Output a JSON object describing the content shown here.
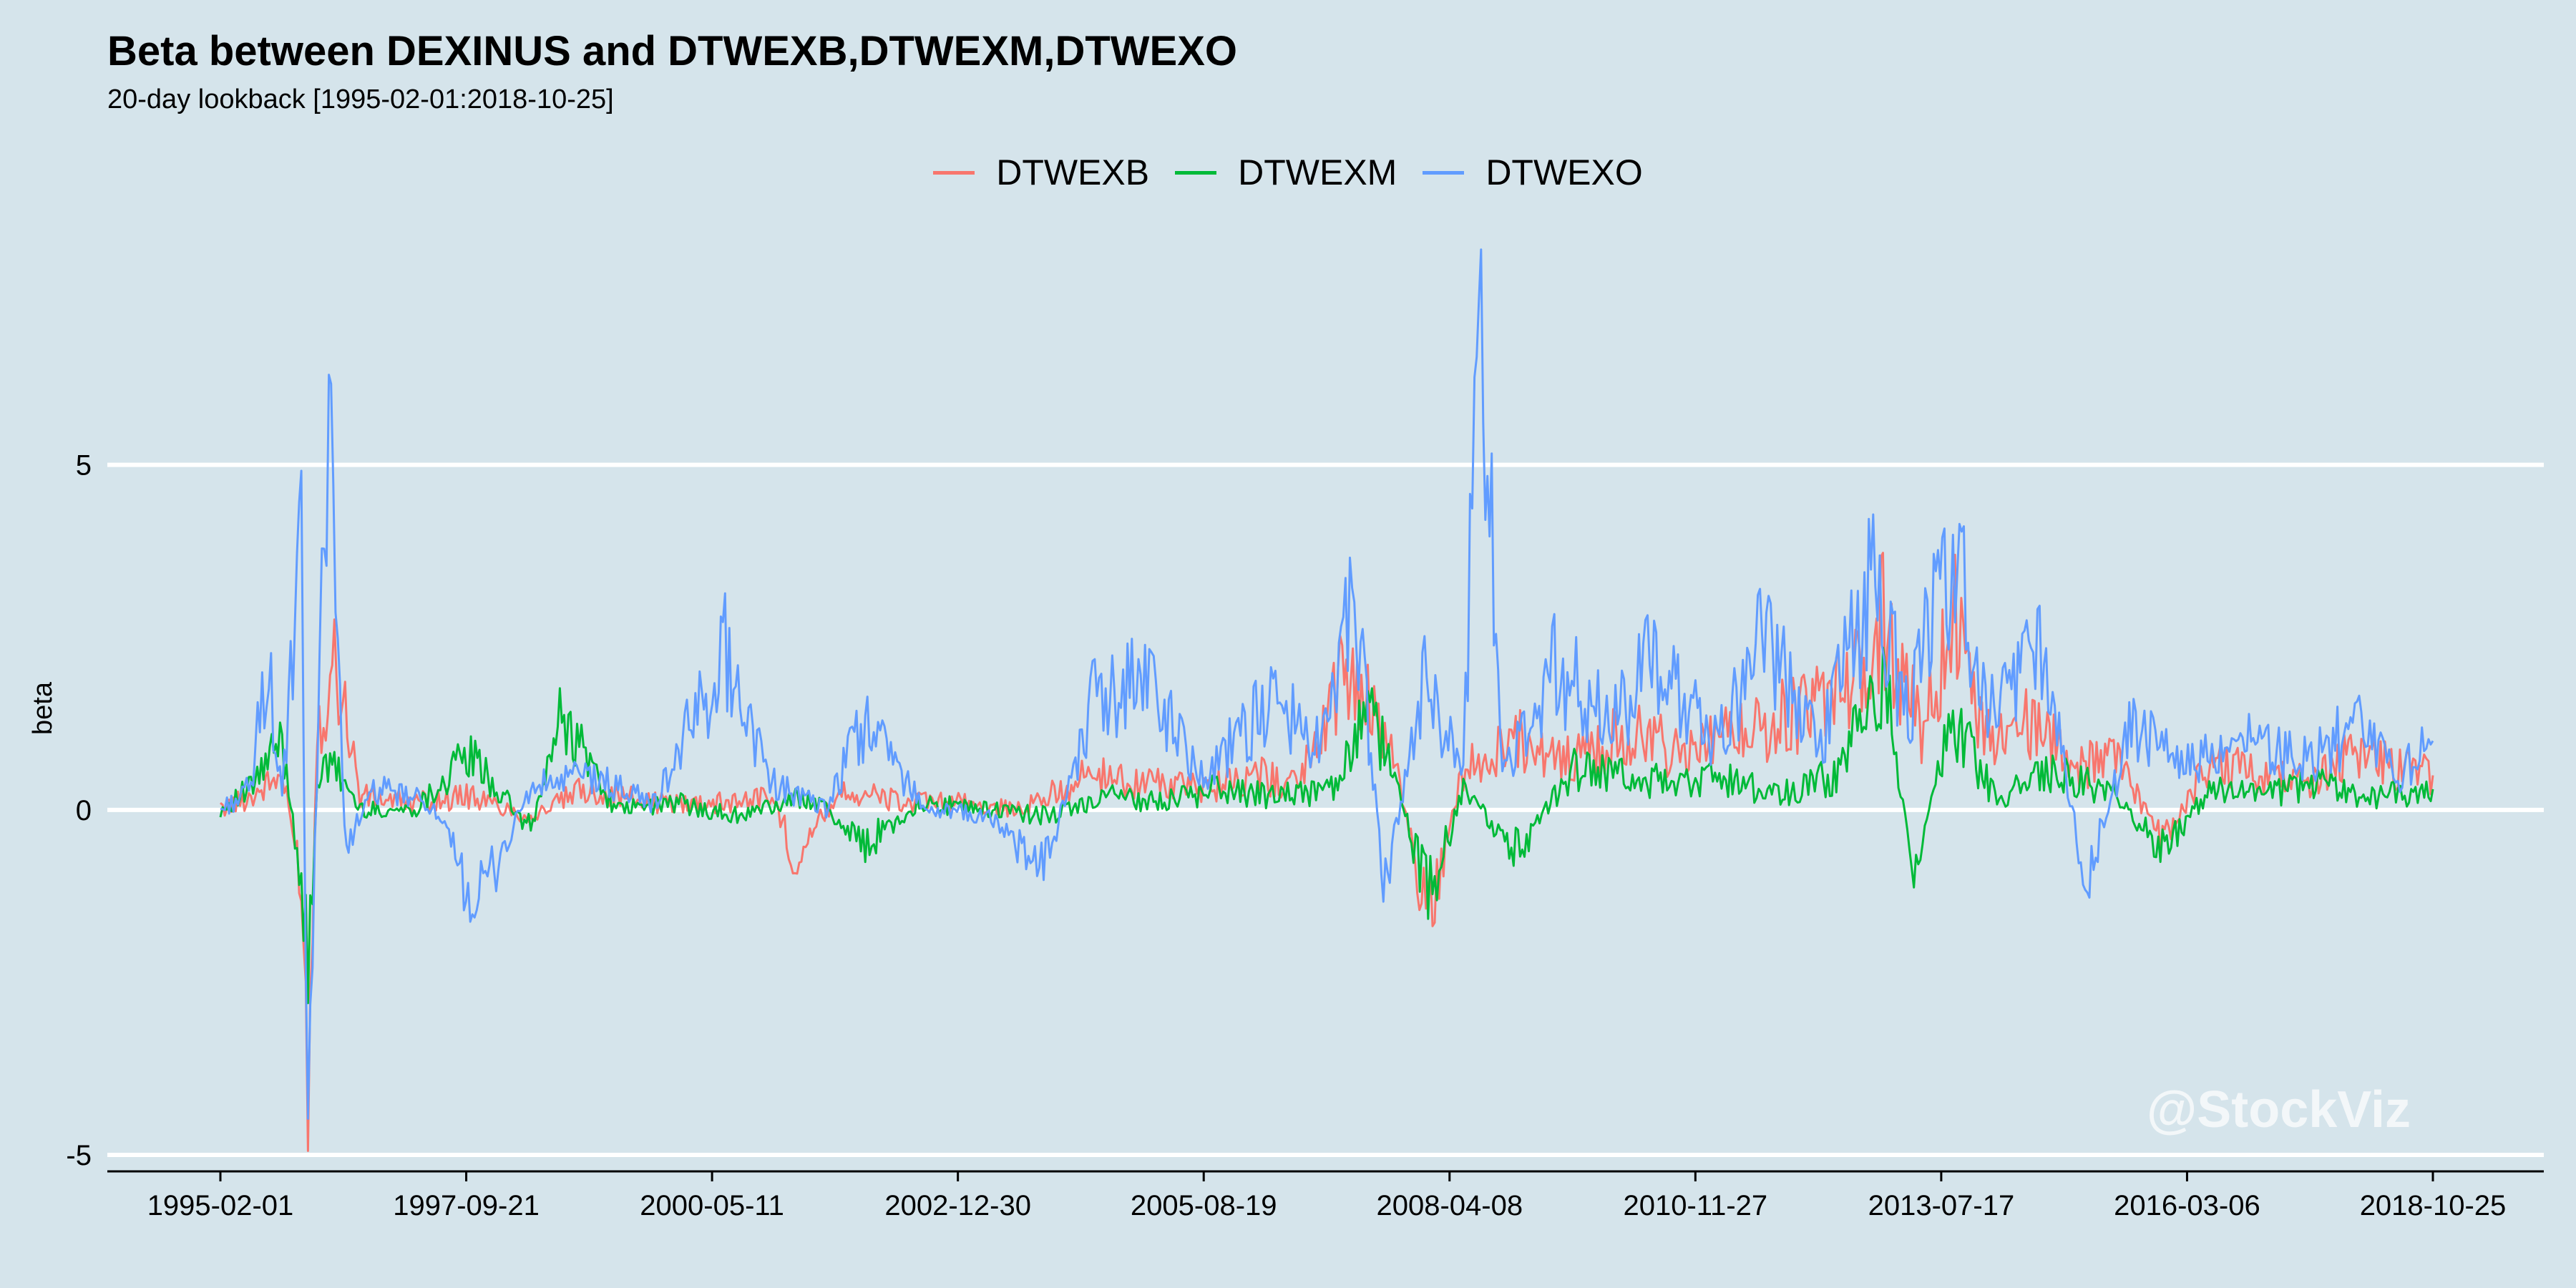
{
  "chart_data": {
    "type": "line",
    "title": "Beta between DEXINUS and DTWEXB,DTWEXM,DTWEXO",
    "subtitle": "20-day lookback [1995-02-01:2018-10-25]",
    "ylabel": "beta",
    "xlabel": "",
    "ylim": [
      -5,
      7.9
    ],
    "yticks": [
      -5,
      0,
      5
    ],
    "xlim": [
      "1995-02-01",
      "2018-10-25"
    ],
    "x_tick_labels": [
      "1995-02-01",
      "1997-09-21",
      "2000-05-11",
      "2002-12-30",
      "2005-08-19",
      "2008-04-08",
      "2010-11-27",
      "2013-07-17",
      "2016-03-06",
      "2018-10-25"
    ],
    "grid": "horizontal major lines only",
    "legend_position": "top",
    "watermark": "@StockViz",
    "series": [
      {
        "name": "DTWEXB",
        "color": "#f8766d",
        "points": [
          [
            "1995-02-01",
            0.0
          ],
          [
            "1995-06-01",
            0.2
          ],
          [
            "1995-10-01",
            0.5
          ],
          [
            "1995-12-15",
            -1.0
          ],
          [
            "1996-01-10",
            -4.0
          ],
          [
            "1996-02-15",
            1.2
          ],
          [
            "1996-05-01",
            2.2
          ],
          [
            "1996-08-01",
            0.2
          ],
          [
            "1997-03-01",
            0.1
          ],
          [
            "1997-10-01",
            0.2
          ],
          [
            "1998-06-01",
            -0.1
          ],
          [
            "1999-01-01",
            0.3
          ],
          [
            "1999-10-01",
            0.1
          ],
          [
            "2000-06-01",
            0.1
          ],
          [
            "2001-01-01",
            0.2
          ],
          [
            "2001-04-01",
            -0.7
          ],
          [
            "2001-10-01",
            0.3
          ],
          [
            "2002-06-01",
            0.1
          ],
          [
            "2003-01-01",
            0.1
          ],
          [
            "2003-09-01",
            0.0
          ],
          [
            "2004-06-01",
            0.5
          ],
          [
            "2005-01-01",
            0.4
          ],
          [
            "2005-08-01",
            0.3
          ],
          [
            "2006-03-01",
            0.5
          ],
          [
            "2006-09-01",
            0.4
          ],
          [
            "2007-03-01",
            2.1
          ],
          [
            "2007-09-01",
            0.8
          ],
          [
            "2008-01-15",
            -1.6
          ],
          [
            "2008-06-01",
            0.6
          ],
          [
            "2009-01-01",
            1.0
          ],
          [
            "2009-08-01",
            0.7
          ],
          [
            "2010-03-01",
            1.1
          ],
          [
            "2010-11-01",
            0.8
          ],
          [
            "2011-08-01",
            1.2
          ],
          [
            "2012-06-01",
            1.6
          ],
          [
            "2012-12-01",
            2.8
          ],
          [
            "2013-05-01",
            1.2
          ],
          [
            "2013-09-01",
            2.8
          ],
          [
            "2014-01-01",
            1.0
          ],
          [
            "2014-07-01",
            1.3
          ],
          [
            "2015-01-01",
            0.6
          ],
          [
            "2015-06-01",
            0.8
          ],
          [
            "2015-12-01",
            -0.5
          ],
          [
            "2016-06-01",
            0.7
          ],
          [
            "2017-01-01",
            0.5
          ],
          [
            "2017-07-01",
            0.4
          ],
          [
            "2018-01-01",
            0.9
          ],
          [
            "2018-06-01",
            0.6
          ],
          [
            "2018-10-25",
            0.5
          ]
        ]
      },
      {
        "name": "DTWEXM",
        "color": "#00ba38",
        "points": [
          [
            "1995-02-01",
            0.0
          ],
          [
            "1995-06-01",
            0.3
          ],
          [
            "1995-10-01",
            1.0
          ],
          [
            "1995-12-15",
            -1.0
          ],
          [
            "1996-01-10",
            -2.6
          ],
          [
            "1996-02-15",
            0.5
          ],
          [
            "1996-05-01",
            0.6
          ],
          [
            "1996-08-01",
            0.0
          ],
          [
            "1997-03-01",
            0.0
          ],
          [
            "1997-10-01",
            0.8
          ],
          [
            "1998-06-01",
            -0.3
          ],
          [
            "1998-10-01",
            1.4
          ],
          [
            "1999-05-01",
            0.0
          ],
          [
            "2000-01-01",
            0.1
          ],
          [
            "2000-08-01",
            -0.1
          ],
          [
            "2001-06-01",
            0.2
          ],
          [
            "2002-01-01",
            -0.5
          ],
          [
            "2002-08-01",
            0.1
          ],
          [
            "2003-06-01",
            0.0
          ],
          [
            "2004-01-01",
            -0.1
          ],
          [
            "2004-08-01",
            0.2
          ],
          [
            "2005-03-01",
            0.1
          ],
          [
            "2005-10-01",
            0.3
          ],
          [
            "2006-06-01",
            0.2
          ],
          [
            "2007-01-01",
            0.3
          ],
          [
            "2007-06-01",
            1.4
          ],
          [
            "2007-10-01",
            0.2
          ],
          [
            "2008-01-15",
            -1.3
          ],
          [
            "2008-06-01",
            0.3
          ],
          [
            "2009-01-01",
            -0.6
          ],
          [
            "2009-08-01",
            0.6
          ],
          [
            "2010-06-01",
            0.4
          ],
          [
            "2011-03-01",
            0.5
          ],
          [
            "2011-10-01",
            0.2
          ],
          [
            "2012-06-01",
            0.5
          ],
          [
            "2012-12-01",
            2.0
          ],
          [
            "2013-04-01",
            -0.8
          ],
          [
            "2013-09-01",
            1.3
          ],
          [
            "2014-03-01",
            0.1
          ],
          [
            "2014-09-01",
            0.6
          ],
          [
            "2015-06-01",
            0.2
          ],
          [
            "2015-12-01",
            -0.6
          ],
          [
            "2016-06-01",
            0.3
          ],
          [
            "2017-01-01",
            0.2
          ],
          [
            "2017-08-01",
            0.4
          ],
          [
            "2018-03-01",
            0.2
          ],
          [
            "2018-10-25",
            0.3
          ]
        ]
      },
      {
        "name": "DTWEXO",
        "color": "#619cff",
        "points": [
          [
            "1995-02-01",
            0.0
          ],
          [
            "1995-06-01",
            0.3
          ],
          [
            "1995-08-01",
            2.2
          ],
          [
            "1995-10-01",
            0.2
          ],
          [
            "1995-12-15",
            3.7
          ],
          [
            "1996-01-10",
            -4.6
          ],
          [
            "1996-02-15",
            0.5
          ],
          [
            "1996-04-01",
            6.9
          ],
          [
            "1996-06-01",
            -0.5
          ],
          [
            "1996-10-01",
            0.3
          ],
          [
            "1997-05-01",
            0.1
          ],
          [
            "1997-11-01",
            -1.4
          ],
          [
            "1998-06-01",
            0.3
          ],
          [
            "1999-01-01",
            0.5
          ],
          [
            "1999-10-01",
            0.1
          ],
          [
            "2000-07-01",
            2.3
          ],
          [
            "2001-01-01",
            0.4
          ],
          [
            "2001-08-01",
            0.0
          ],
          [
            "2002-01-01",
            1.3
          ],
          [
            "2002-09-01",
            0.0
          ],
          [
            "2003-05-01",
            -0.1
          ],
          [
            "2003-12-01",
            -0.9
          ],
          [
            "2004-06-01",
            1.5
          ],
          [
            "2005-01-01",
            2.0
          ],
          [
            "2005-08-01",
            0.5
          ],
          [
            "2006-05-01",
            1.5
          ],
          [
            "2006-12-01",
            1.0
          ],
          [
            "2007-04-01",
            3.1
          ],
          [
            "2007-08-01",
            -1.2
          ],
          [
            "2008-01-01",
            2.0
          ],
          [
            "2008-06-01",
            0.4
          ],
          [
            "2008-08-01",
            7.8
          ],
          [
            "2008-11-01",
            0.6
          ],
          [
            "2009-06-01",
            2.1
          ],
          [
            "2010-01-01",
            1.2
          ],
          [
            "2010-06-01",
            2.1
          ],
          [
            "2011-03-01",
            1.0
          ],
          [
            "2011-09-01",
            2.5
          ],
          [
            "2012-04-01",
            1.0
          ],
          [
            "2012-11-01",
            3.5
          ],
          [
            "2013-03-01",
            1.4
          ],
          [
            "2013-09-01",
            3.7
          ],
          [
            "2014-02-01",
            1.4
          ],
          [
            "2014-09-01",
            2.3
          ],
          [
            "2015-02-01",
            -1.1
          ],
          [
            "2015-08-01",
            1.2
          ],
          [
            "2016-03-01",
            0.6
          ],
          [
            "2016-10-01",
            1.0
          ],
          [
            "2017-06-01",
            0.7
          ],
          [
            "2018-01-01",
            1.2
          ],
          [
            "2018-06-01",
            0.5
          ],
          [
            "2018-10-25",
            1.0
          ]
        ]
      }
    ]
  }
}
